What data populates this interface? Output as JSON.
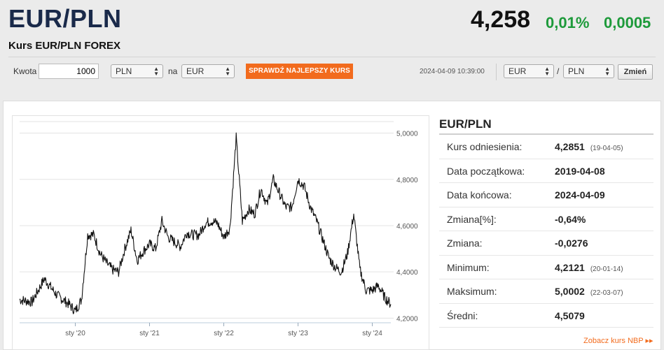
{
  "header": {
    "pair": "EUR/PLN",
    "subtitle": "Kurs EUR/PLN FOREX",
    "rate": "4,258",
    "change_pct": "0,01%",
    "change_abs": "0,0005",
    "positive_color": "#1d9a3a"
  },
  "calculator": {
    "amount_label": "Kwota",
    "amount_value": "1000",
    "from_currency": "PLN",
    "to_label": "na",
    "to_currency": "EUR",
    "best_rate_button": "SPRAWDŹ NAJLEPSZY KURS",
    "datetime": "2024-04-09 10:39:00",
    "pair_base": "EUR",
    "pair_separator": "/",
    "pair_quote": "PLN",
    "change_button": "Zmień",
    "accent_color": "#f26b1d"
  },
  "stats": {
    "title": "EUR/PLN",
    "rows": [
      {
        "label": "Kurs odniesienia:",
        "value": "4,2851",
        "date": "(19-04-05)"
      },
      {
        "label": "Data początkowa:",
        "value": "2019-04-08",
        "date": ""
      },
      {
        "label": "Data końcowa:",
        "value": "2024-04-09",
        "date": ""
      },
      {
        "label": "Zmiana[%]:",
        "value": "-0,64%",
        "date": ""
      },
      {
        "label": "Zmiana:",
        "value": "-0,0276",
        "date": ""
      },
      {
        "label": "Minimum:",
        "value": "4,2121",
        "date": "(20-01-14)"
      },
      {
        "label": "Maksimum:",
        "value": "5,0002",
        "date": "(22-03-07)"
      },
      {
        "label": "Średni:",
        "value": "4,5079",
        "date": ""
      }
    ],
    "nbp_link": "Zobacz kurs NBP ▸▸"
  },
  "chart_data": {
    "type": "line",
    "series": [
      {
        "x": [
          "2019-04",
          "2019-06",
          "2019-08",
          "2019-10",
          "2019-12",
          "2020-01",
          "2020-02",
          "2020-03",
          "2020-04",
          "2020-05",
          "2020-06",
          "2020-07",
          "2020-08",
          "2020-09",
          "2020-10",
          "2020-11",
          "2020-12",
          "2021-01",
          "2021-02",
          "2021-03",
          "2021-04",
          "2021-05",
          "2021-06",
          "2021-07",
          "2021-08",
          "2021-09",
          "2021-10",
          "2021-11",
          "2021-12",
          "2022-01",
          "2022-02",
          "2022-03",
          "2022-04",
          "2022-05",
          "2022-06",
          "2022-07",
          "2022-08",
          "2022-09",
          "2022-10",
          "2022-11",
          "2022-12",
          "2023-01",
          "2023-02",
          "2023-03",
          "2023-04",
          "2023-05",
          "2023-06",
          "2023-07",
          "2023-08",
          "2023-09",
          "2023-10",
          "2023-11",
          "2023-12",
          "2024-01",
          "2024-02",
          "2024-03",
          "2024-04"
        ],
        "y": [
          4.28,
          4.27,
          4.37,
          4.3,
          4.26,
          4.23,
          4.28,
          4.56,
          4.56,
          4.48,
          4.44,
          4.41,
          4.4,
          4.5,
          4.58,
          4.45,
          4.49,
          4.52,
          4.5,
          4.62,
          4.55,
          4.53,
          4.51,
          4.57,
          4.56,
          4.56,
          4.61,
          4.62,
          4.61,
          4.55,
          4.59,
          4.98,
          4.62,
          4.67,
          4.65,
          4.76,
          4.69,
          4.8,
          4.74,
          4.68,
          4.68,
          4.8,
          4.77,
          4.68,
          4.62,
          4.54,
          4.46,
          4.42,
          4.4,
          4.48,
          4.65,
          4.41,
          4.32,
          4.32,
          4.34,
          4.29,
          4.26
        ]
      }
    ],
    "x_tick_labels": [
      "sty '20",
      "sty '21",
      "sty '22",
      "sty '23",
      "sty '24"
    ],
    "y_tick_labels": [
      "5,0000",
      "4,8000",
      "4,6000",
      "4,4000",
      "4,2000"
    ],
    "ylim": [
      4.18,
      5.05
    ],
    "grid": true
  }
}
